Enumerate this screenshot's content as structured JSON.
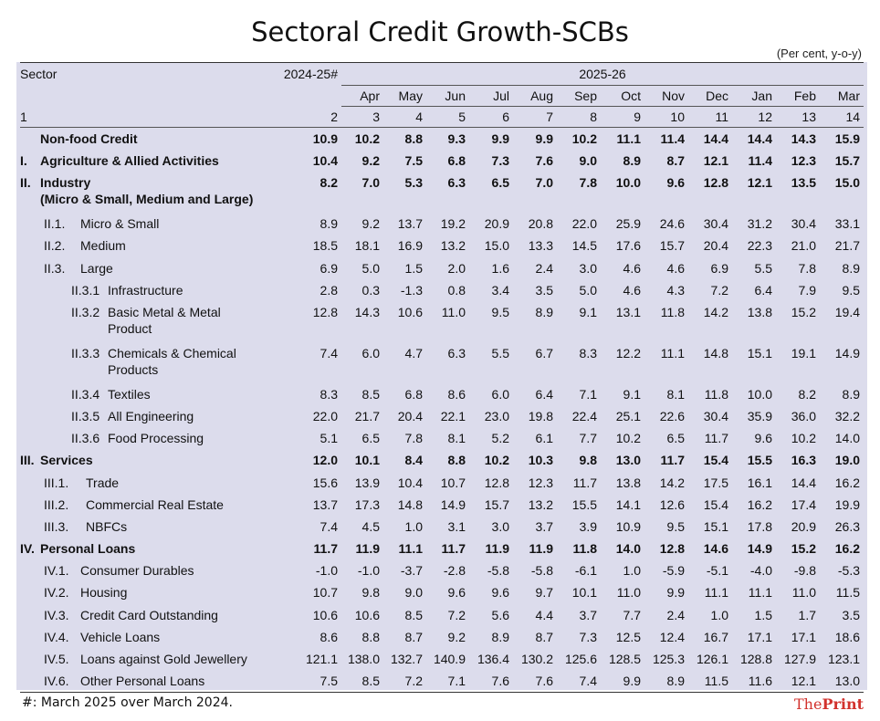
{
  "title": "Sectoral Credit Growth-SCBs",
  "unit_note": "(Per cent, y-o-y)",
  "header": {
    "sector_label": "Sector",
    "year_prev": "2024-25#",
    "year_curr": "2025-26",
    "months": [
      "Apr",
      "May",
      "Jun",
      "Jul",
      "Aug",
      "Sep",
      "Oct",
      "Nov",
      "Dec",
      "Jan",
      "Feb",
      "Mar"
    ],
    "col_numbers": [
      "1",
      "2",
      "3",
      "4",
      "5",
      "6",
      "7",
      "8",
      "9",
      "10",
      "11",
      "12",
      "13",
      "14"
    ]
  },
  "rows": [
    {
      "code": "",
      "label": "Non-food Credit",
      "values": [
        "10.9",
        "10.2",
        "8.8",
        "9.3",
        "9.9",
        "9.9",
        "10.2",
        "11.1",
        "11.4",
        "14.4",
        "14.4",
        "14.3",
        "15.9"
      ]
    },
    {
      "code": "I.",
      "label": "Agriculture & Allied Activities",
      "values": [
        "10.4",
        "9.2",
        "7.5",
        "6.8",
        "7.3",
        "7.6",
        "9.0",
        "8.9",
        "8.7",
        "12.1",
        "11.4",
        "12.3",
        "15.7"
      ]
    },
    {
      "code": "II.",
      "label": "Industry",
      "label2": "(Micro & Small, Medium and Large)",
      "values": [
        "8.2",
        "7.0",
        "5.3",
        "6.3",
        "6.5",
        "7.0",
        "7.8",
        "10.0",
        "9.6",
        "12.8",
        "12.1",
        "13.5",
        "15.0"
      ]
    },
    {
      "code": "II.1.",
      "label": "Micro & Small",
      "values": [
        "8.9",
        "9.2",
        "13.7",
        "19.2",
        "20.9",
        "20.8",
        "22.0",
        "25.9",
        "24.6",
        "30.4",
        "31.2",
        "30.4",
        "33.1"
      ]
    },
    {
      "code": "II.2.",
      "label": "Medium",
      "values": [
        "18.5",
        "18.1",
        "16.9",
        "13.2",
        "15.0",
        "13.3",
        "14.5",
        "17.6",
        "15.7",
        "20.4",
        "22.3",
        "21.0",
        "21.7"
      ]
    },
    {
      "code": "II.3.",
      "label": "Large",
      "values": [
        "6.9",
        "5.0",
        "1.5",
        "2.0",
        "1.6",
        "2.4",
        "3.0",
        "4.6",
        "4.6",
        "6.9",
        "5.5",
        "7.8",
        "8.9"
      ]
    },
    {
      "code": "II.3.1",
      "label": "Infrastructure",
      "values": [
        "2.8",
        "0.3",
        "-1.3",
        "0.8",
        "3.4",
        "3.5",
        "5.0",
        "4.6",
        "4.3",
        "7.2",
        "6.4",
        "7.9",
        "9.5"
      ]
    },
    {
      "code": "II.3.2",
      "label": "Basic Metal & Metal",
      "label2": "Product",
      "values": [
        "12.8",
        "14.3",
        "10.6",
        "11.0",
        "9.5",
        "8.9",
        "9.1",
        "13.1",
        "11.8",
        "14.2",
        "13.8",
        "15.2",
        "19.4"
      ]
    },
    {
      "code": "II.3.3",
      "label": "Chemicals & Chemical",
      "label2": "Products",
      "values": [
        "7.4",
        "6.0",
        "4.7",
        "6.3",
        "5.5",
        "6.7",
        "8.3",
        "12.2",
        "11.1",
        "14.8",
        "15.1",
        "19.1",
        "14.9"
      ]
    },
    {
      "code": "II.3.4",
      "label": "Textiles",
      "values": [
        "8.3",
        "8.5",
        "6.8",
        "8.6",
        "6.0",
        "6.4",
        "7.1",
        "9.1",
        "8.1",
        "11.8",
        "10.0",
        "8.2",
        "8.9"
      ]
    },
    {
      "code": "II.3.5",
      "label": "All Engineering",
      "values": [
        "22.0",
        "21.7",
        "20.4",
        "22.1",
        "23.0",
        "19.8",
        "22.4",
        "25.1",
        "22.6",
        "30.4",
        "35.9",
        "36.0",
        "32.2"
      ]
    },
    {
      "code": "II.3.6",
      "label": "Food Processing",
      "values": [
        "5.1",
        "6.5",
        "7.8",
        "8.1",
        "5.2",
        "6.1",
        "7.7",
        "10.2",
        "6.5",
        "11.7",
        "9.6",
        "10.2",
        "14.0"
      ]
    },
    {
      "code": "III.",
      "label": "Services",
      "values": [
        "12.0",
        "10.1",
        "8.4",
        "8.8",
        "10.2",
        "10.3",
        "9.8",
        "13.0",
        "11.7",
        "15.4",
        "15.5",
        "16.3",
        "19.0"
      ]
    },
    {
      "code": "III.1.",
      "label": "Trade",
      "values": [
        "15.6",
        "13.9",
        "10.4",
        "10.7",
        "12.8",
        "12.3",
        "11.7",
        "13.8",
        "14.2",
        "17.5",
        "16.1",
        "14.4",
        "16.2"
      ]
    },
    {
      "code": "III.2.",
      "label": "Commercial Real Estate",
      "values": [
        "13.7",
        "17.3",
        "14.8",
        "14.9",
        "15.7",
        "13.2",
        "15.5",
        "14.1",
        "12.6",
        "15.4",
        "16.2",
        "17.4",
        "19.9"
      ]
    },
    {
      "code": "III.3.",
      "label": "NBFCs",
      "values": [
        "7.4",
        "4.5",
        "1.0",
        "3.1",
        "3.0",
        "3.7",
        "3.9",
        "10.9",
        "9.5",
        "15.1",
        "17.8",
        "20.9",
        "26.3"
      ]
    },
    {
      "code": "IV.",
      "label": "Personal Loans",
      "values": [
        "11.7",
        "11.9",
        "11.1",
        "11.7",
        "11.9",
        "11.9",
        "11.8",
        "14.0",
        "12.8",
        "14.6",
        "14.9",
        "15.2",
        "16.2"
      ]
    },
    {
      "code": "IV.1.",
      "label": "Consumer Durables",
      "values": [
        "-1.0",
        "-1.0",
        "-3.7",
        "-2.8",
        "-5.8",
        "-5.8",
        "-6.1",
        "1.0",
        "-5.9",
        "-5.1",
        "-4.0",
        "-9.8",
        "-5.3"
      ]
    },
    {
      "code": "IV.2.",
      "label": "Housing",
      "values": [
        "10.7",
        "9.8",
        "9.0",
        "9.6",
        "9.6",
        "9.7",
        "10.1",
        "11.0",
        "9.9",
        "11.1",
        "11.1",
        "11.0",
        "11.5"
      ]
    },
    {
      "code": "IV.3.",
      "label": "Credit Card Outstanding",
      "values": [
        "10.6",
        "10.6",
        "8.5",
        "7.2",
        "5.6",
        "4.4",
        "3.7",
        "7.7",
        "2.4",
        "1.0",
        "1.5",
        "1.7",
        "3.5"
      ]
    },
    {
      "code": "IV.4.",
      "label": "Vehicle Loans",
      "values": [
        "8.6",
        "8.8",
        "8.7",
        "9.2",
        "8.9",
        "8.7",
        "7.3",
        "12.5",
        "12.4",
        "16.7",
        "17.1",
        "17.1",
        "18.6"
      ]
    },
    {
      "code": "IV.5.",
      "label": "Loans against Gold Jewellery",
      "values": [
        "121.1",
        "138.0",
        "132.7",
        "140.9",
        "136.4",
        "130.2",
        "125.6",
        "128.5",
        "125.3",
        "126.1",
        "128.8",
        "127.9",
        "123.1"
      ]
    },
    {
      "code": "IV.6.",
      "label": "Other Personal Loans",
      "values": [
        "7.5",
        "8.5",
        "7.2",
        "7.1",
        "7.6",
        "7.6",
        "7.4",
        "9.9",
        "8.9",
        "11.5",
        "11.6",
        "12.1",
        "13.0"
      ]
    }
  ],
  "footer_note": "#: March 2025 over March 2024.",
  "logo": {
    "the": "The",
    "print": "Print"
  }
}
